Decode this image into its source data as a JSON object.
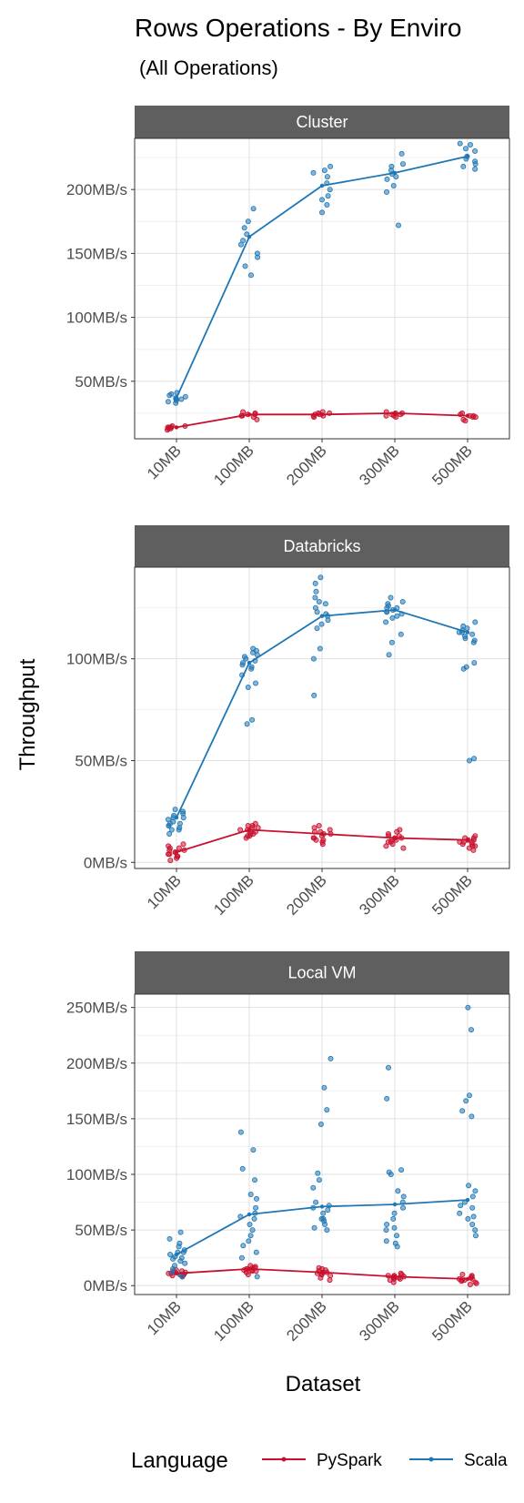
{
  "title": "Rows Operations - By Enviro",
  "subtitle": "(All Operations)",
  "colors": {
    "PySpark": "#C8102E",
    "Scala": "#1F77B4"
  },
  "chart_data": {
    "type": "scatter",
    "x_label": "Dataset",
    "y_label": "Throughput",
    "categories": [
      "10MB",
      "100MB",
      "200MB",
      "300MB",
      "500MB"
    ],
    "grid": true,
    "legend": {
      "title": "Language",
      "position": "bottom",
      "entries": [
        "PySpark",
        "Scala"
      ]
    },
    "panels": [
      {
        "name": "Cluster",
        "y_range": [
          5,
          240
        ],
        "y_ticks": [
          50,
          100,
          150,
          200
        ],
        "y_tick_labels": [
          "50MB/s",
          "100MB/s",
          "150MB/s",
          "200MB/s"
        ],
        "lines": {
          "Scala": [
            37,
            163,
            203,
            213,
            226
          ],
          "PySpark": [
            14,
            24,
            24,
            25,
            23
          ]
        },
        "points": {
          "Scala": [
            [
              40,
              38,
              36,
              35,
              33,
              37,
              39,
              41,
              34,
              36
            ],
            [
              185,
              175,
              170,
              165,
              150,
              147,
              140,
              133,
              160,
              157
            ],
            [
              218,
              215,
              213,
              210,
              205,
              200,
              195,
              192,
              188,
              182
            ],
            [
              228,
              220,
              215,
              212,
              208,
              203,
              198,
              172,
              218,
              210
            ],
            [
              236,
              235,
              232,
              230,
              226,
              224,
              222,
              220,
              218,
              216
            ]
          ],
          "PySpark": [
            [
              12,
              13,
              14,
              15,
              14,
              13,
              15,
              14
            ],
            [
              20,
              22,
              23,
              24,
              25,
              26,
              24,
              23
            ],
            [
              22,
              23,
              24,
              25,
              26,
              24,
              23,
              25
            ],
            [
              22,
              23,
              24,
              25,
              26,
              24,
              23,
              25
            ],
            [
              19,
              20,
              22,
              23,
              24,
              25,
              23,
              22
            ]
          ]
        }
      },
      {
        "name": "Databricks",
        "y_range": [
          -3,
          145
        ],
        "y_ticks": [
          0,
          50,
          100
        ],
        "y_tick_labels": [
          "0MB/s",
          "50MB/s",
          "100MB/s"
        ],
        "lines": {
          "Scala": [
            22,
            98,
            121,
            124,
            113
          ],
          "PySpark": [
            5,
            16,
            14,
            12,
            11
          ]
        },
        "points": {
          "Scala": [
            [
              14,
              16,
              17,
              18,
              19,
              20,
              21,
              22,
              23,
              24,
              25,
              26,
              16,
              19,
              22,
              18
            ],
            [
              68,
              70,
              86,
              88,
              92,
              95,
              97,
              98,
              99,
              100,
              101,
              102,
              103,
              104,
              105,
              96
            ],
            [
              140,
              137,
              133,
              130,
              127,
              125,
              123,
              121,
              119,
              117,
              115,
              105,
              100,
              82,
              128,
              122
            ],
            [
              130,
              128,
              127,
              126,
              125,
              124,
              123,
              122,
              121,
              120,
              118,
              112,
              108,
              102,
              125,
              123
            ],
            [
              118,
              116,
              115,
              114,
              113,
              112,
              111,
              110,
              109,
              108,
              98,
              96,
              95,
              51,
              50,
              113
            ]
          ],
          "PySpark": [
            [
              1,
              2,
              3,
              4,
              5,
              6,
              7,
              8,
              9,
              3,
              5,
              7,
              4,
              6
            ],
            [
              12,
              13,
              14,
              15,
              16,
              17,
              18,
              19,
              15,
              16,
              14,
              17,
              13,
              18
            ],
            [
              9,
              10,
              11,
              12,
              13,
              14,
              15,
              16,
              17,
              18,
              12,
              14,
              11,
              15
            ],
            [
              7,
              8,
              9,
              10,
              11,
              12,
              13,
              14,
              15,
              16,
              11,
              12,
              10,
              13
            ],
            [
              6,
              7,
              8,
              9,
              10,
              11,
              12,
              13,
              9,
              10,
              11,
              12,
              8,
              10
            ]
          ]
        }
      },
      {
        "name": "Local VM",
        "y_range": [
          -8,
          262
        ],
        "y_ticks": [
          0,
          50,
          100,
          150,
          200,
          250
        ],
        "y_tick_labels": [
          "0MB/s",
          "50MB/s",
          "100MB/s",
          "150MB/s",
          "200MB/s",
          "250MB/s"
        ],
        "lines": {
          "Scala": [
            28,
            64,
            71,
            73,
            77
          ],
          "PySpark": [
            11,
            15,
            12,
            8,
            6
          ]
        },
        "points": {
          "Scala": [
            [
              48,
              42,
              38,
              35,
              32,
              30,
              28,
              26,
              24,
              22,
              20,
              18,
              15,
              12,
              10,
              8,
              25,
              30
            ],
            [
              138,
              122,
              105,
              95,
              82,
              78,
              70,
              65,
              62,
              60,
              55,
              50,
              45,
              40,
              36,
              30,
              25,
              8
            ],
            [
              204,
              178,
              158,
              145,
              101,
              95,
              88,
              75,
              70,
              65,
              60,
              58,
              55,
              52,
              50,
              60,
              68,
              72
            ],
            [
              196,
              168,
              104,
              102,
              100,
              85,
              80,
              75,
              70,
              65,
              60,
              55,
              52,
              50,
              45,
              40,
              38,
              35
            ],
            [
              250,
              230,
              171,
              166,
              157,
              152,
              90,
              85,
              80,
              75,
              72,
              70,
              65,
              62,
              60,
              55,
              50,
              45
            ]
          ],
          "PySpark": [
            [
              8,
              9,
              10,
              11,
              12,
              13,
              14,
              10,
              11,
              12,
              9,
              13
            ],
            [
              10,
              12,
              13,
              14,
              15,
              16,
              17,
              18,
              14,
              15,
              16,
              13
            ],
            [
              5,
              7,
              9,
              10,
              11,
              12,
              13,
              14,
              15,
              16,
              12,
              10
            ],
            [
              3,
              5,
              6,
              7,
              8,
              9,
              10,
              11,
              8,
              9,
              7,
              6
            ],
            [
              1,
              2,
              3,
              4,
              5,
              6,
              7,
              8,
              9,
              10,
              5,
              6
            ]
          ]
        }
      }
    ]
  }
}
